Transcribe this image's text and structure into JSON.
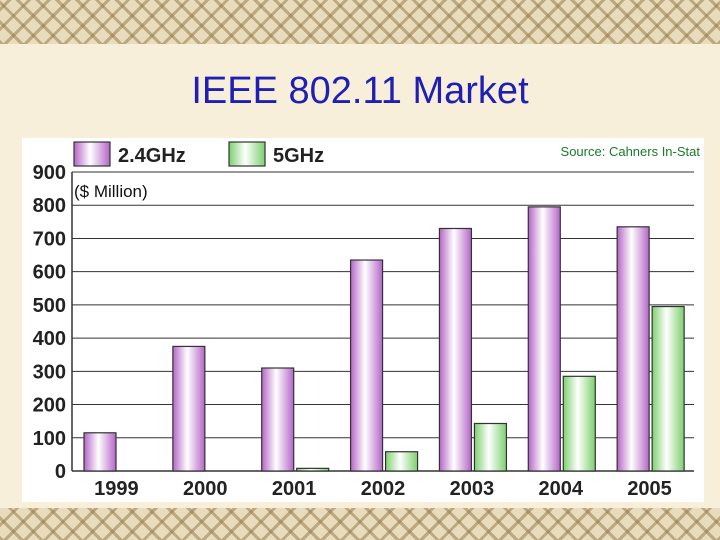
{
  "slide": {
    "title": "IEEE 802.11 Market"
  },
  "chart_data": {
    "type": "bar",
    "categories": [
      "1999",
      "2000",
      "2001",
      "2002",
      "2003",
      "2004",
      "2005"
    ],
    "series": [
      {
        "name": "2.4GHz",
        "values": [
          115,
          375,
          310,
          635,
          730,
          795,
          735
        ],
        "color": "#b565c8"
      },
      {
        "name": "5GHz",
        "values": [
          0,
          0,
          8,
          58,
          143,
          285,
          495
        ],
        "color": "#7cd06e"
      }
    ],
    "y_ticks": [
      "0",
      "100",
      "200",
      "300",
      "400",
      "500",
      "600",
      "700",
      "800",
      "900"
    ],
    "ylim": [
      0,
      900
    ],
    "unit_label": "($ Million)",
    "source": "Source: Cahners In-Stat",
    "grid": true,
    "legend_position": "top-left"
  }
}
